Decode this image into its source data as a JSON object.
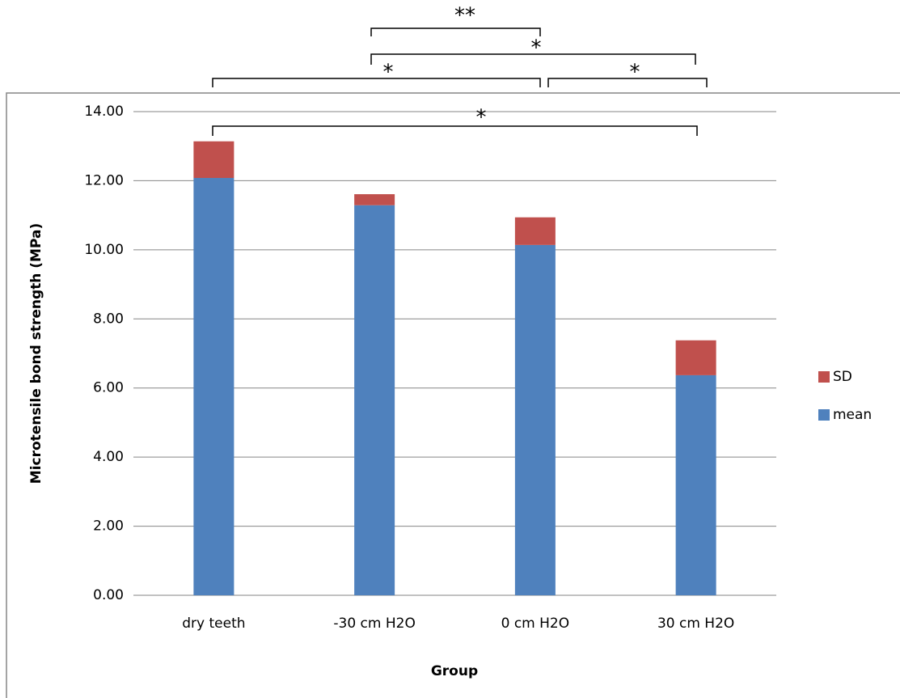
{
  "chart_data": {
    "type": "stacked_bar",
    "y_label": "Microtensile bond strength (MPa)",
    "x_label": "Group",
    "categories": [
      "dry teeth",
      "-30 cm H2O",
      "0 cm H2O",
      "30 cm H2O"
    ],
    "series": [
      {
        "name": "mean",
        "color": "#4f81bd",
        "values": [
          12.08,
          11.29,
          10.14,
          6.37
        ]
      },
      {
        "name": "SD",
        "color": "#c0504d",
        "values": [
          1.06,
          0.32,
          0.8,
          1.01
        ]
      }
    ],
    "ylim": [
      0,
      14
    ],
    "yticks": [
      {
        "value": 0,
        "label": "0.00"
      },
      {
        "value": 2,
        "label": "2.00"
      },
      {
        "value": 4,
        "label": "4.00"
      },
      {
        "value": 6,
        "label": "6.00"
      },
      {
        "value": 8,
        "label": "8.00"
      },
      {
        "value": 10,
        "label": "10.00"
      },
      {
        "value": 12,
        "label": "12.00"
      },
      {
        "value": 14,
        "label": "14.00"
      }
    ],
    "grid": true,
    "legend": "right",
    "annotations": [
      "**",
      "*",
      "*",
      "*",
      "*"
    ]
  }
}
